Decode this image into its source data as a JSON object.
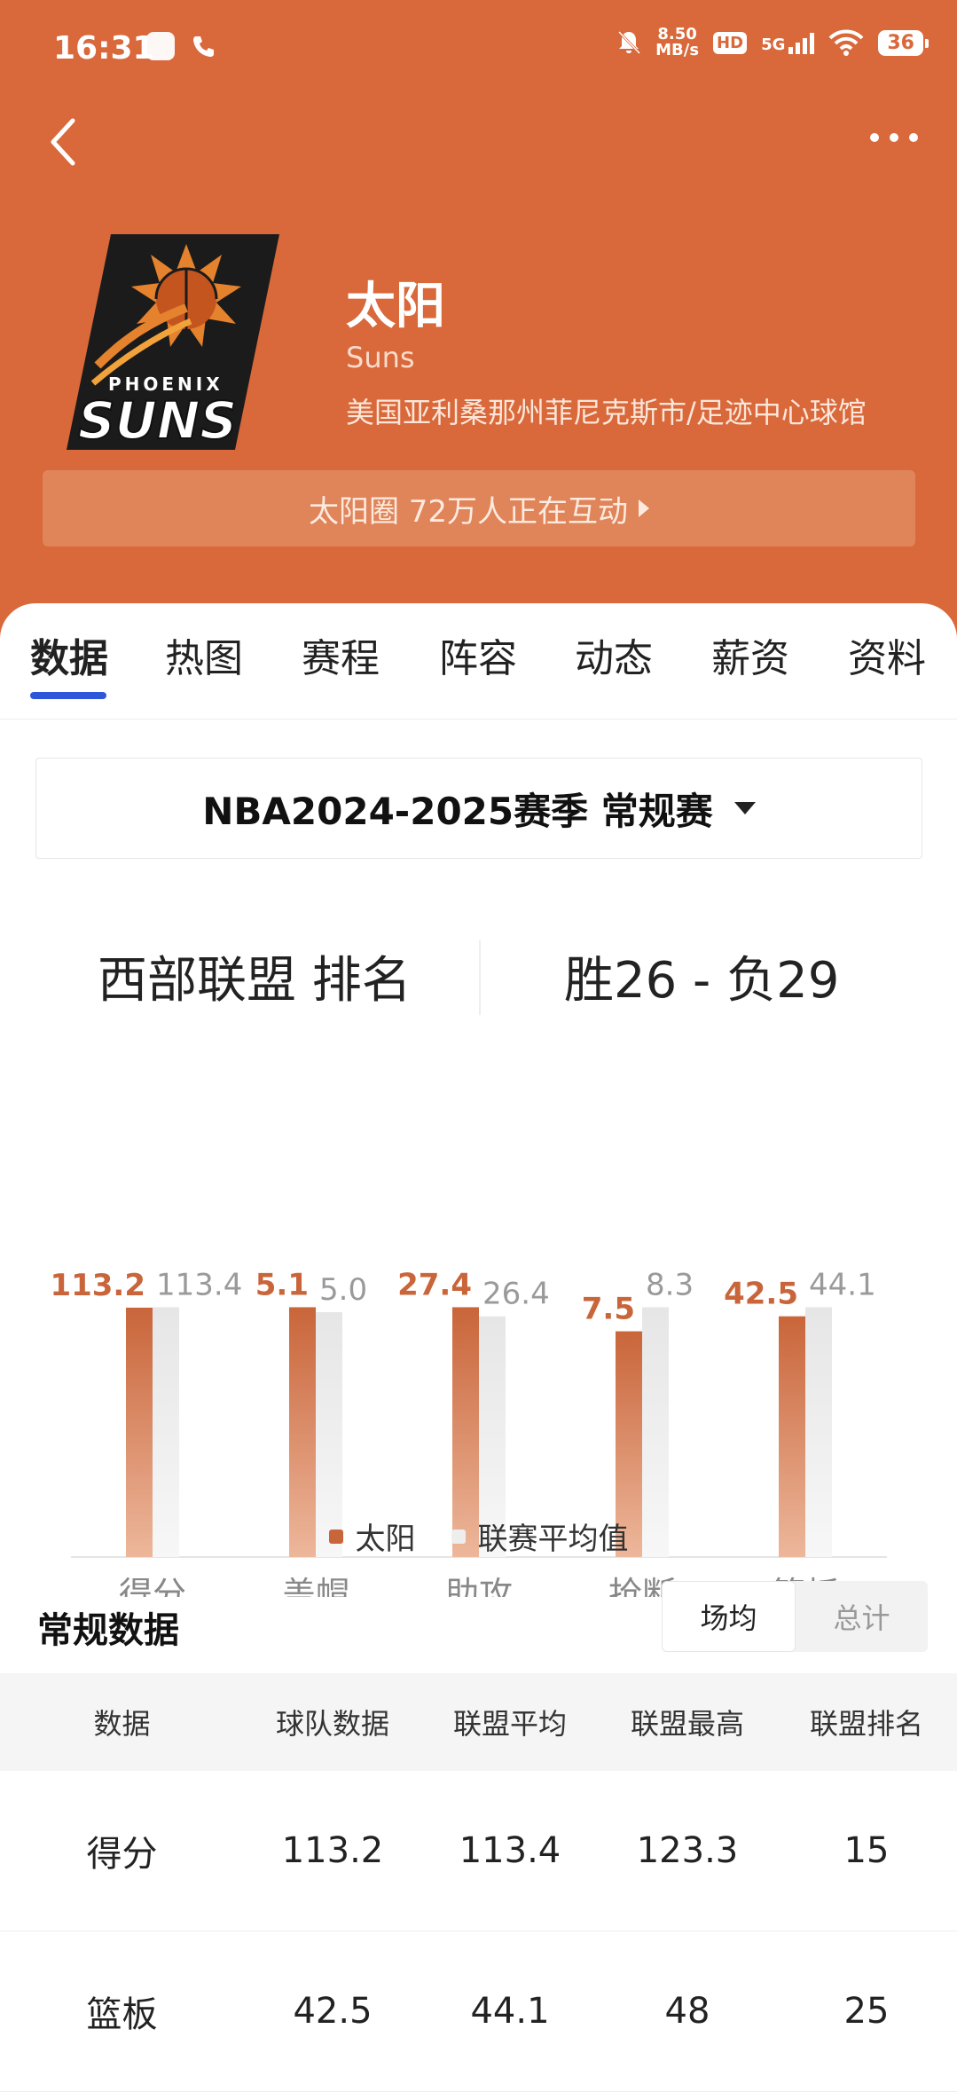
{
  "status_bar": {
    "time": "16:31",
    "speed_value": "8.50",
    "speed_unit": "MB/s",
    "hd": "HD",
    "network": "5G",
    "battery": "36"
  },
  "team": {
    "name_cn": "太阳",
    "name_en": "Suns",
    "location": "美国亚利桑那州菲尼克斯市/足迹中心球馆",
    "logo_text_top": "PHOENIX",
    "logo_text_main": "SUNS",
    "fan_circle": "太阳圈 72万人正在互动"
  },
  "tabs": [
    {
      "label": "数据"
    },
    {
      "label": "热图"
    },
    {
      "label": "赛程"
    },
    {
      "label": "阵容"
    },
    {
      "label": "动态"
    },
    {
      "label": "薪资"
    },
    {
      "label": "资料"
    }
  ],
  "season": {
    "selected": "NBA2024-2025赛季 常规赛"
  },
  "ranking": {
    "label": "西部联盟 排名",
    "record": "胜26 - 负29"
  },
  "chart_data": {
    "type": "bar",
    "categories": [
      "得分",
      "盖帽",
      "助攻",
      "抢断",
      "篮板"
    ],
    "series": [
      {
        "name": "太阳",
        "values": [
          113.2,
          5.1,
          27.4,
          7.5,
          42.5
        ],
        "color": "#C9653A"
      },
      {
        "name": "联赛平均值",
        "values": [
          113.4,
          5.0,
          26.4,
          8.3,
          44.1
        ],
        "color": "#E8E8E8"
      }
    ],
    "value_labels_team": [
      "113.2",
      "5.1",
      "27.4",
      "7.5",
      "42.5"
    ],
    "value_labels_avg": [
      "113.4",
      "5.0",
      "26.4",
      "8.3",
      "44.1"
    ],
    "grid": false,
    "legend_position": "bottom"
  },
  "regular": {
    "title": "常规数据",
    "toggle": [
      {
        "label": "场均"
      },
      {
        "label": "总计"
      }
    ],
    "headers": [
      "数据",
      "球队数据",
      "联盟平均",
      "联盟最高",
      "联盟排名"
    ],
    "rows": [
      [
        "得分",
        "113.2",
        "113.4",
        "123.3",
        "15"
      ],
      [
        "篮板",
        "42.5",
        "44.1",
        "48",
        "25"
      ]
    ]
  },
  "colors": {
    "header_bg": "#D9683A",
    "accent_blue": "#2F56D9",
    "team_bar": "#C9653A",
    "avg_bar": "#E8E8E8"
  }
}
